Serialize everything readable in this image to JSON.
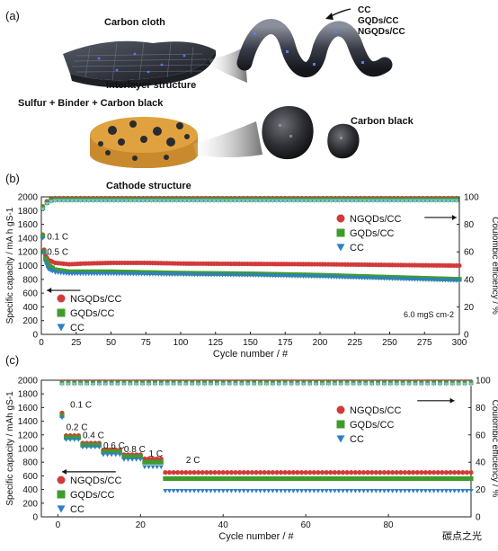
{
  "panel_a": {
    "label": "(a)",
    "carbon_cloth": "Carbon cloth",
    "interlayer": "Interlayer structure",
    "cc_list": [
      "CC",
      "GQDs/CC",
      "NGQDs/CC"
    ],
    "sulfur": "Sulfur + Binder + Carbon black",
    "carbon_black": "Carbon black",
    "cathode": "Cathode structure"
  },
  "watermark": "碳点之光",
  "colors": {
    "NGQDs/CC": "#d23a3a",
    "GQDs/CC": "#3f9c2c",
    "CC": "#2f7fc6",
    "CE_CC": "#7fbfe8"
  },
  "chart_data": [
    {
      "panel": "(b)",
      "type": "scatter",
      "xlabel": "Cycle number / #",
      "ylabel_left": "Specific capacity / mA h gS-1",
      "ylabel_right": "Coulombic efficiency / %",
      "xlim": [
        0,
        300
      ],
      "ylim_left": [
        0,
        2000
      ],
      "ylim_right": [
        0,
        100
      ],
      "xticks": [
        "0",
        "25",
        "50",
        "75",
        "100",
        "125",
        "150",
        "175",
        "200",
        "225",
        "250",
        "275",
        "300"
      ],
      "yticks_left": [
        "0",
        "200",
        "400",
        "600",
        "800",
        "1000",
        "1200",
        "1400",
        "1600",
        "1800",
        "2000"
      ],
      "yticks_right": [
        "0",
        "20",
        "40",
        "60",
        "80",
        "100"
      ],
      "annotations": [
        "0.1 C",
        "0.5 C",
        "6.0 mgS cm-2"
      ],
      "legend_capacity": [
        "NGQDs/CC",
        "GQDs/CC",
        "CC"
      ],
      "legend_ce": [
        "NGQDs/CC",
        "GQDs/CC",
        "CC"
      ],
      "series": [
        {
          "name": "NGQDs/CC",
          "kind": "capacity",
          "x": [
            1,
            2,
            3,
            5,
            10,
            20,
            30,
            50,
            75,
            100,
            150,
            200,
            250,
            300
          ],
          "y": [
            1450,
            1230,
            1150,
            1080,
            1040,
            1020,
            1030,
            1040,
            1040,
            1030,
            1025,
            1020,
            1010,
            1000
          ]
        },
        {
          "name": "GQDs/CC",
          "kind": "capacity",
          "x": [
            1,
            2,
            3,
            5,
            10,
            20,
            30,
            50,
            75,
            100,
            150,
            200,
            250,
            300
          ],
          "y": [
            1430,
            1200,
            1100,
            1000,
            940,
            910,
            910,
            910,
            900,
            890,
            880,
            860,
            830,
            800
          ]
        },
        {
          "name": "CC",
          "kind": "capacity",
          "x": [
            1,
            2,
            3,
            5,
            10,
            20,
            30,
            50,
            75,
            100,
            150,
            200,
            250,
            300
          ],
          "y": [
            1400,
            1180,
            1050,
            950,
            900,
            880,
            880,
            880,
            875,
            870,
            860,
            840,
            810,
            780
          ]
        },
        {
          "name": "NGQDs/CC",
          "kind": "ce",
          "x": [
            1,
            5,
            10,
            50,
            100,
            150,
            200,
            250,
            300
          ],
          "y": [
            93,
            98,
            99,
            99,
            99,
            99,
            99,
            99,
            99
          ]
        },
        {
          "name": "GQDs/CC",
          "kind": "ce",
          "x": [
            1,
            5,
            10,
            50,
            100,
            150,
            200,
            250,
            300
          ],
          "y": [
            92,
            97,
            98,
            98,
            98,
            98,
            98,
            98,
            98
          ]
        },
        {
          "name": "CC",
          "kind": "ce",
          "x": [
            1,
            5,
            10,
            50,
            100,
            150,
            200,
            250,
            300
          ],
          "y": [
            91,
            96,
            97,
            97,
            97,
            97,
            97,
            97,
            97
          ]
        }
      ]
    },
    {
      "panel": "(c)",
      "type": "scatter",
      "xlabel": "Cycle number / #",
      "ylabel_left": "Specific capacity / mAh gS-1",
      "ylabel_right": "Coulombic efficiency / %",
      "xlim": [
        -4,
        100
      ],
      "ylim_left": [
        0,
        2000
      ],
      "ylim_right": [
        0,
        100
      ],
      "xticks": [
        "0",
        "20",
        "40",
        "60",
        "80"
      ],
      "yticks_left": [
        "0",
        "200",
        "400",
        "600",
        "800",
        "1000",
        "1200",
        "1400",
        "1600",
        "1800",
        "2000"
      ],
      "yticks_right": [
        "0",
        "20",
        "40",
        "60",
        "80",
        "100"
      ],
      "rate_labels": [
        "0.1 C",
        "0.2 C",
        "0.4 C",
        "0.6 C",
        "0.8 C",
        "1 C",
        "2 C"
      ],
      "legend_capacity": [
        "NGQDs/CC",
        "GQDs/CC",
        "CC"
      ],
      "legend_ce": [
        "NGQDs/CC",
        "GQDs/CC",
        "CC"
      ],
      "rate_steps": [
        {
          "rate": "0.1 C",
          "from": 1,
          "to": 1,
          "values": [
            1520,
            1480,
            1450
          ]
        },
        {
          "rate": "0.2 C",
          "from": 2,
          "to": 5,
          "values": [
            1190,
            1160,
            1130
          ]
        },
        {
          "rate": "0.4 C",
          "from": 6,
          "to": 10,
          "values": [
            1080,
            1050,
            1020
          ]
        },
        {
          "rate": "0.6 C",
          "from": 11,
          "to": 15,
          "values": [
            980,
            950,
            910
          ]
        },
        {
          "rate": "0.8 C",
          "from": 16,
          "to": 20,
          "values": [
            910,
            880,
            840
          ]
        },
        {
          "rate": "1 C",
          "from": 21,
          "to": 25,
          "values": [
            850,
            800,
            730
          ]
        },
        {
          "rate": "2 C",
          "from": 26,
          "to": 100,
          "values": [
            650,
            560,
            380
          ]
        }
      ],
      "series_names": [
        "NGQDs/CC",
        "GQDs/CC",
        "CC"
      ],
      "ce_values": [
        {
          "name": "NGQDs/CC",
          "y": 99
        },
        {
          "name": "GQDs/CC",
          "y": 98
        },
        {
          "name": "CC",
          "y": 97
        }
      ]
    }
  ]
}
